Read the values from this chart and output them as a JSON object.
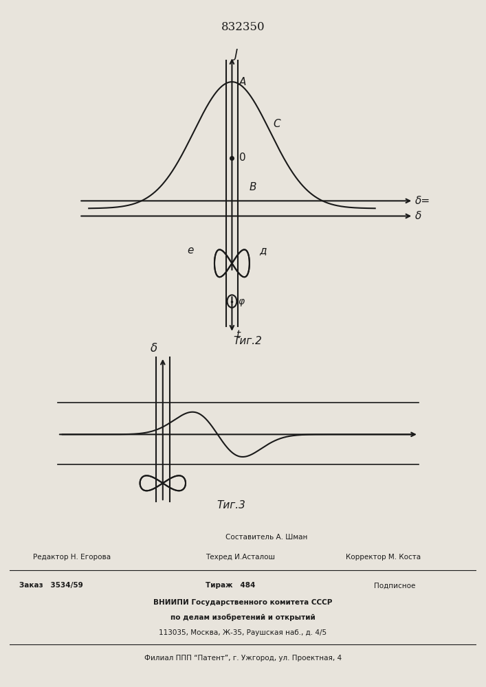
{
  "patent_number": "832350",
  "fig2_label": "Τиг.2",
  "fig3_label": "Τиг.3",
  "bg_color": "#e8e4dc",
  "line_color": "#1a1a1a",
  "fig2": {
    "axis_label_J": "J",
    "axis_label_delta_eq": "δ=",
    "axis_label_delta": "δ",
    "axis_label_t": "t",
    "label_A": "A",
    "label_C": "C",
    "label_O": "0",
    "label_B": "B",
    "label_e": "e",
    "label_d": "д",
    "label_phi": "φ"
  },
  "fig3": {
    "axis_label_delta": "δ"
  },
  "footer": {
    "sestavitel": "Составитель А. Шман",
    "redaktor": "Редактор Н. Егорова",
    "tehred": "Техред И.Асталош",
    "korrektor": "Корректор М. Коста",
    "zakaz": "Заказ   3534/59",
    "tirazh": "Тираж   484",
    "podpisnoe": "Подписное",
    "vniipи": "ВНИИПИ Государственного комитета СССР",
    "po_delam": "по делам изобретений и открытий",
    "address": "113035, Москва, Ж-35, Раушская наб., д. 4/5",
    "filial": "Филиал ППП “Патент”, г. Ужгород, ул. Проектная, 4"
  }
}
